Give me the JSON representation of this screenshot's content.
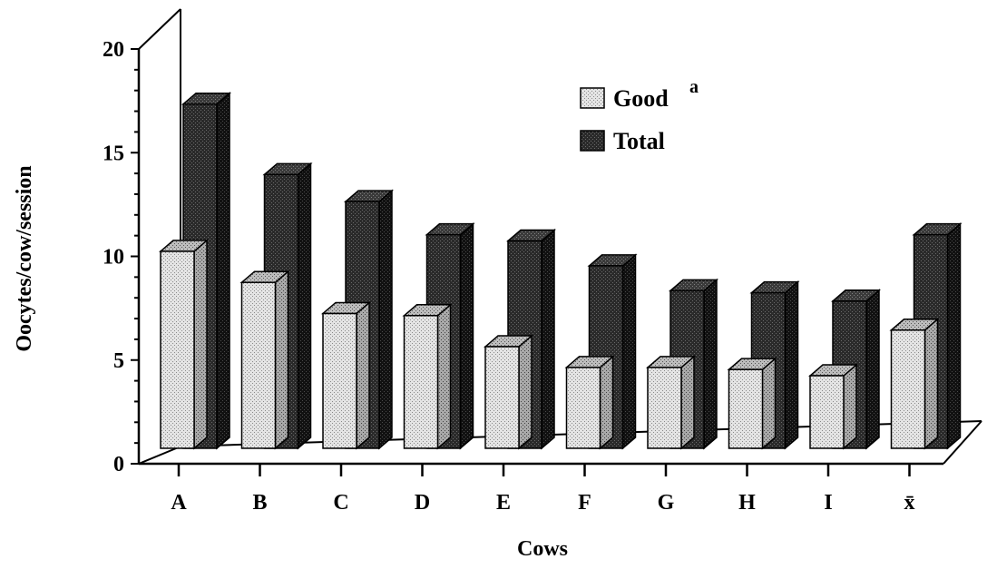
{
  "chart_data": {
    "type": "bar",
    "title": "",
    "xlabel": "Cows",
    "ylabel": "Oocytes/cow/session",
    "ylim": [
      0,
      20
    ],
    "yticks": [
      "0",
      "5",
      "10",
      "15",
      "20"
    ],
    "grid": false,
    "legend_position": "top-right",
    "categories": [
      "A",
      "B",
      "C",
      "D",
      "E",
      "F",
      "G",
      "H",
      "I",
      "x̄"
    ],
    "series": [
      {
        "name": "Good",
        "superscript": "a",
        "pattern": "light-stipple",
        "color": "#d6d6d6",
        "values": [
          9.5,
          8.0,
          6.5,
          6.4,
          4.9,
          3.9,
          3.9,
          3.8,
          3.5,
          5.7
        ]
      },
      {
        "name": "Total",
        "pattern": "dark-stipple",
        "color": "#1c1c1c",
        "values": [
          16.6,
          13.2,
          11.9,
          10.3,
          10.0,
          8.8,
          7.6,
          7.5,
          7.1,
          10.3
        ]
      }
    ]
  }
}
